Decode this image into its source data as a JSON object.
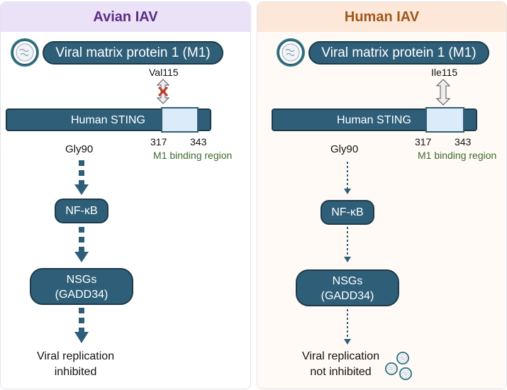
{
  "left": {
    "title": "Avian IAV",
    "m1": "Viral matrix protein 1 (M1)",
    "residue": "Val115",
    "sting": "Human STING",
    "start": "317",
    "end": "343",
    "region": "M1 binding region",
    "gly": "Gly90",
    "nfkb": "NF-κB",
    "nsgs1": "NSGs",
    "nsgs2": "(GADD34)",
    "out1": "Viral replication",
    "out2": "inhibited",
    "interaction": "blocked"
  },
  "right": {
    "title": "Human IAV",
    "m1": "Viral matrix protein 1 (M1)",
    "residue": "Ile115",
    "sting": "Human STING",
    "start": "317",
    "end": "343",
    "region": "M1 binding region",
    "gly": "Gly90",
    "nfkb": "NF-κB",
    "nsgs1": "NSGs",
    "nsgs2": "(GADD34)",
    "out1": "Viral replication",
    "out2": "not inhibited",
    "interaction": "binding"
  },
  "colors": {
    "node": "#2f5f78",
    "avian_title": "#5b2d82",
    "human_title": "#a0581a",
    "block_x": "#c0392b"
  }
}
